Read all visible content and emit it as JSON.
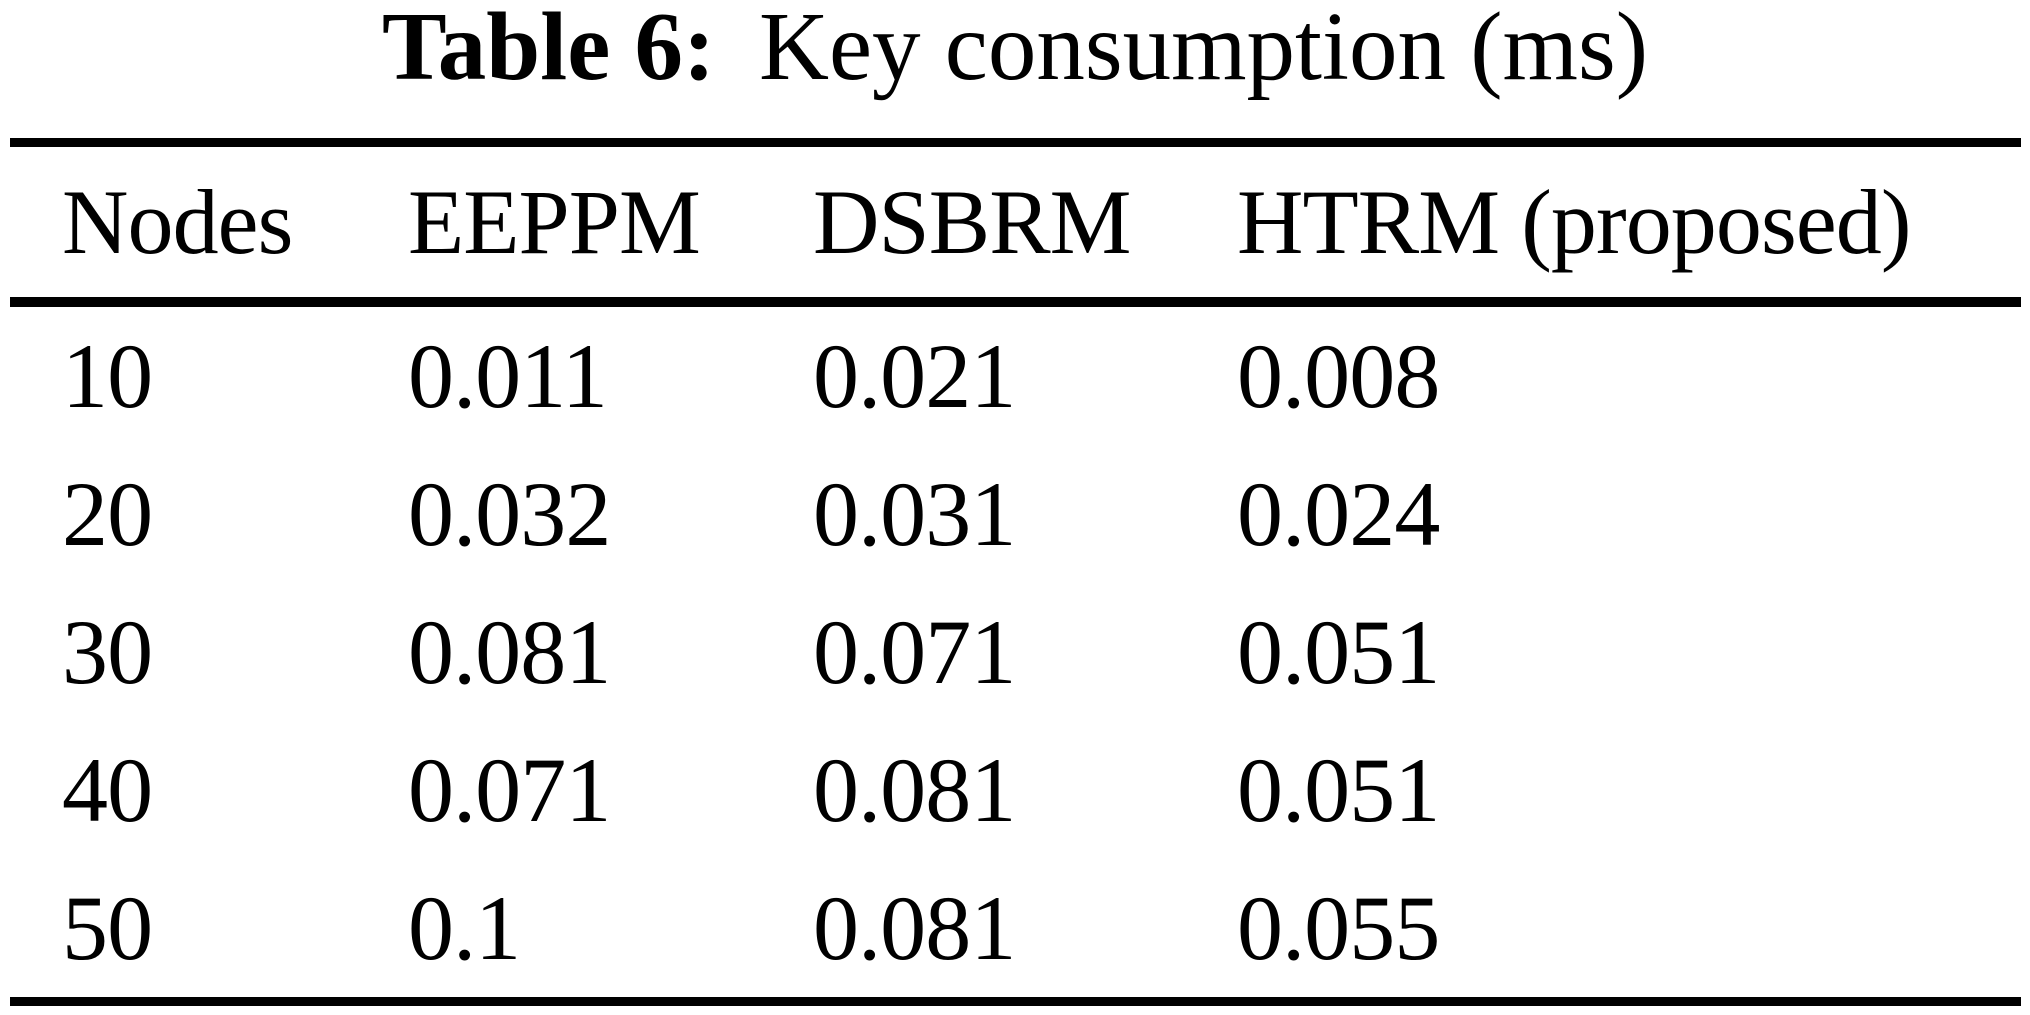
{
  "page": {
    "background_color": "#ffffff",
    "text_color": "#000000"
  },
  "caption": {
    "label": "Table 6:",
    "title": "Key consumption (ms)"
  },
  "table": {
    "columns": [
      "Nodes",
      "EEPPM",
      "DSBRM",
      "HTRM (proposed)"
    ],
    "rows": [
      [
        "10",
        "0.011",
        "0.021",
        "0.008"
      ],
      [
        "20",
        "0.032",
        "0.031",
        "0.024"
      ],
      [
        "30",
        "0.081",
        "0.071",
        "0.051"
      ],
      [
        "40",
        "0.071",
        "0.081",
        "0.051"
      ],
      [
        "50",
        "0.1",
        "0.081",
        "0.055"
      ]
    ]
  },
  "chart_data": {
    "type": "table",
    "title": "Table 6: Key consumption (ms)",
    "columns": [
      "Nodes",
      "EEPPM",
      "DSBRM",
      "HTRM (proposed)"
    ],
    "x": [
      10,
      20,
      30,
      40,
      50
    ],
    "series": [
      {
        "name": "EEPPM",
        "values": [
          0.011,
          0.032,
          0.081,
          0.071,
          0.1
        ]
      },
      {
        "name": "DSBRM",
        "values": [
          0.021,
          0.031,
          0.071,
          0.081,
          0.081
        ]
      },
      {
        "name": "HTRM (proposed)",
        "values": [
          0.008,
          0.024,
          0.051,
          0.051,
          0.055
        ]
      }
    ],
    "units": "ms"
  }
}
